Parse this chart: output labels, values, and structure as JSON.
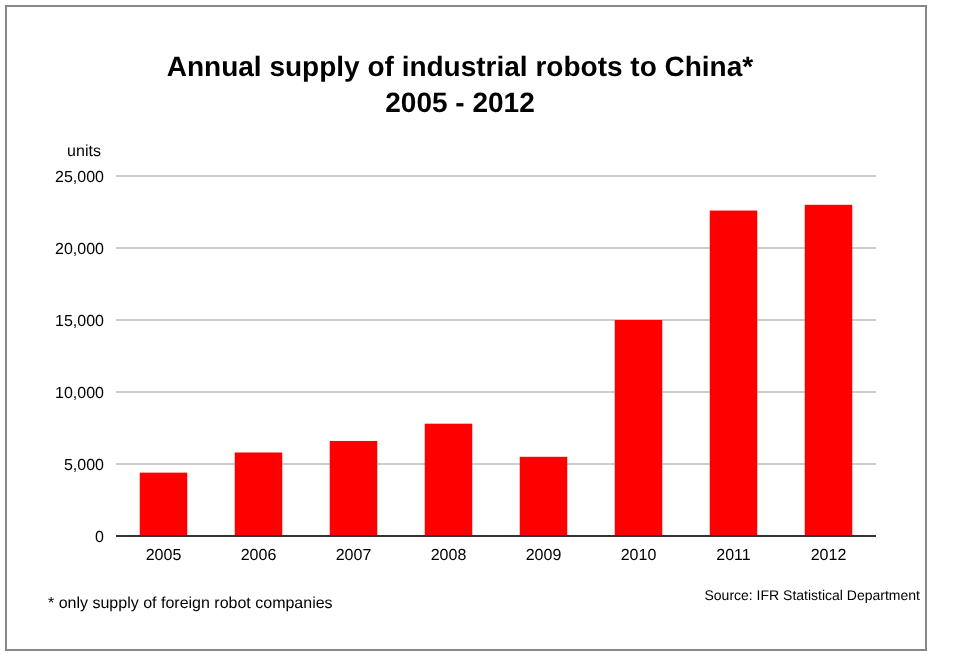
{
  "chart_data": {
    "type": "bar",
    "title": "Annual supply of industrial robots to China*",
    "subtitle": "2005 - 2012",
    "ylabel": "units",
    "categories": [
      "2005",
      "2006",
      "2007",
      "2008",
      "2009",
      "2010",
      "2011",
      "2012"
    ],
    "values": [
      4400,
      5800,
      6600,
      7800,
      5500,
      15000,
      22600,
      23000
    ],
    "color": "#ff0000",
    "ylim": [
      0,
      25000
    ],
    "yticks": [
      0,
      {
        "value": 5000,
        "label": "5,000"
      },
      {
        "value": 10000,
        "label": "10,000"
      },
      {
        "value": 15000,
        "label": "15,000"
      },
      {
        "value": 20000,
        "label": "20,000"
      },
      {
        "value": 25000,
        "label": "25,000"
      }
    ],
    "grid": "y",
    "annotations": [
      "* only supply of foreign robot companies",
      "Source: IFR Statistical Department"
    ]
  }
}
